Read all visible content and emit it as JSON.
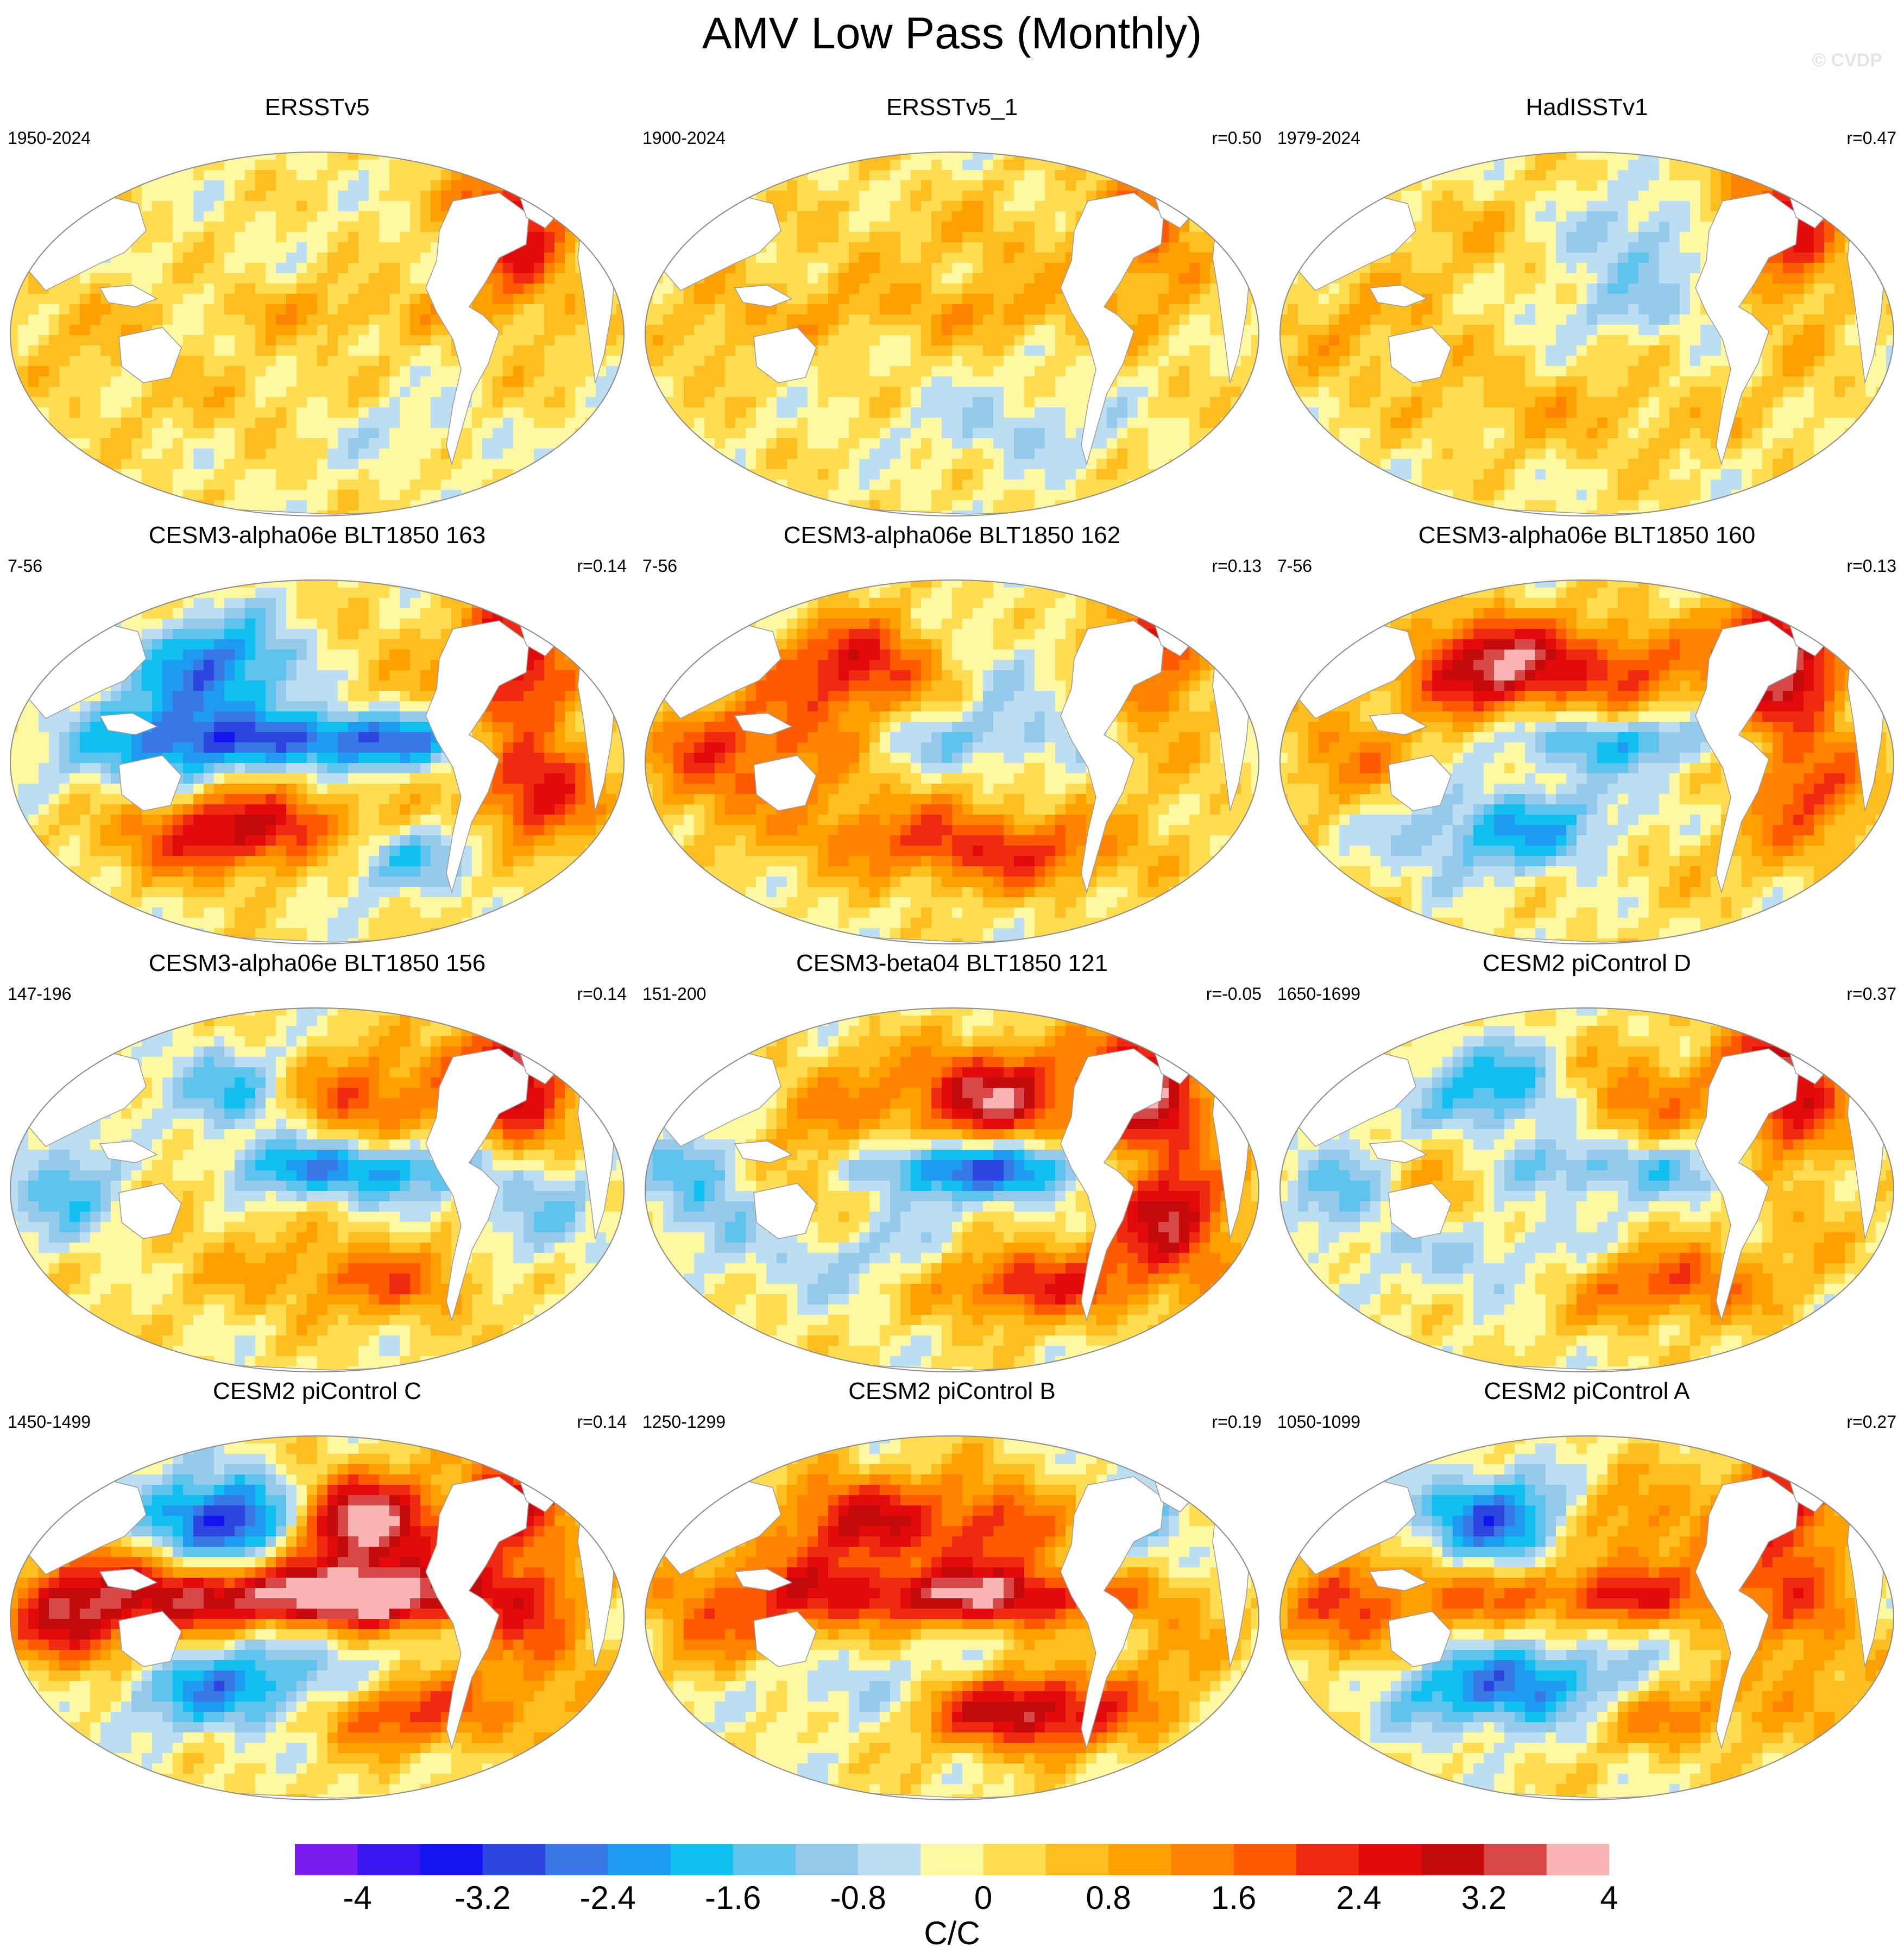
{
  "title": "AMV Low Pass (Monthly)",
  "watermark": "© CVDP",
  "panels": [
    {
      "title": "ERSSTv5",
      "period": "1950-2024",
      "corr": "",
      "pattern": [
        0.0,
        0.0,
        0.0,
        2.8,
        0.8,
        0.6,
        0.5,
        -0.6,
        0.3
      ]
    },
    {
      "title": "ERSSTv5_1",
      "period": "1900-2024",
      "corr": "r=0.50",
      "pattern": [
        0.4,
        0.6,
        0.5,
        1.6,
        0.9,
        0.6,
        0.0,
        -0.8,
        0.2
      ]
    },
    {
      "title": "HadISSTv1",
      "period": "1979-2024",
      "corr": "r=0.47",
      "pattern": [
        0.5,
        -1.2,
        0.5,
        2.6,
        -0.6,
        0.7,
        0.6,
        0.4,
        0.4
      ]
    },
    {
      "title": "CESM3-alpha06e BLT1850 163",
      "period": "7-56",
      "corr": "r=0.14",
      "pattern": [
        -2.5,
        0.6,
        -2.2,
        2.6,
        -3.0,
        -0.6,
        3.2,
        -1.8,
        2.6
      ]
    },
    {
      "title": "CESM3-alpha06e BLT1850 162",
      "period": "7-56",
      "corr": "r=0.13",
      "pattern": [
        2.6,
        -0.6,
        1.6,
        2.2,
        -1.0,
        1.8,
        1.4,
        1.8,
        0.4
      ]
    },
    {
      "title": "CESM3-alpha06e BLT1850 160",
      "period": "7-56",
      "corr": "r=0.13",
      "pattern": [
        3.6,
        1.8,
        0.6,
        3.4,
        -1.8,
        1.2,
        -2.0,
        0.8,
        2.0
      ]
    },
    {
      "title": "CESM3-alpha06e BLT1850 156",
      "period": "147-196",
      "corr": "r=0.14",
      "pattern": [
        -1.5,
        2.0,
        1.0,
        3.6,
        -2.5,
        -1.5,
        0.5,
        1.5,
        -1.0
      ]
    },
    {
      "title": "CESM3-beta04 BLT1850 121",
      "period": "151-200",
      "corr": "r=-0.05",
      "pattern": [
        1.0,
        3.4,
        1.5,
        3.2,
        -3.0,
        -1.5,
        -1.0,
        2.6,
        3.0
      ]
    },
    {
      "title": "CESM2 piControl D",
      "period": "1650-1699",
      "corr": "r=0.37",
      "pattern": [
        -2.0,
        1.5,
        1.0,
        3.2,
        -1.5,
        -1.2,
        -1.0,
        2.2,
        0.5
      ]
    },
    {
      "title": "CESM2 piControl C",
      "period": "1450-1499",
      "corr": "r=0.14",
      "pattern": [
        -3.6,
        4.2,
        2.0,
        2.4,
        4.6,
        3.0,
        -2.6,
        2.6,
        1.5
      ]
    },
    {
      "title": "CESM2 piControl B",
      "period": "1250-1299",
      "corr": "r=0.19",
      "pattern": [
        2.6,
        2.0,
        1.5,
        -1.0,
        3.4,
        1.5,
        -1.0,
        3.6,
        0.8
      ]
    },
    {
      "title": "CESM2 piControl A",
      "period": "1050-1099",
      "corr": "r=0.27",
      "pattern": [
        -2.8,
        1.5,
        1.0,
        2.6,
        2.2,
        1.8,
        -2.8,
        1.8,
        1.2
      ]
    }
  ],
  "colorbar": {
    "units": "C/C",
    "tick_labels": [
      "-4",
      "-3.2",
      "-2.4",
      "-1.6",
      "-0.8",
      "0",
      "0.8",
      "1.6",
      "2.4",
      "3.2",
      "4"
    ],
    "colors": [
      "#7a1cf0",
      "#3a16f0",
      "#1414f0",
      "#2e46e0",
      "#3878e6",
      "#1e9af0",
      "#10bef0",
      "#5ec4ee",
      "#96caea",
      "#bcdef2",
      "#fff8a2",
      "#ffdc50",
      "#ffbe20",
      "#ffa000",
      "#ff8200",
      "#ff5a00",
      "#f02a10",
      "#e20a0a",
      "#c40a0a",
      "#d84848",
      "#fab4b4"
    ]
  }
}
